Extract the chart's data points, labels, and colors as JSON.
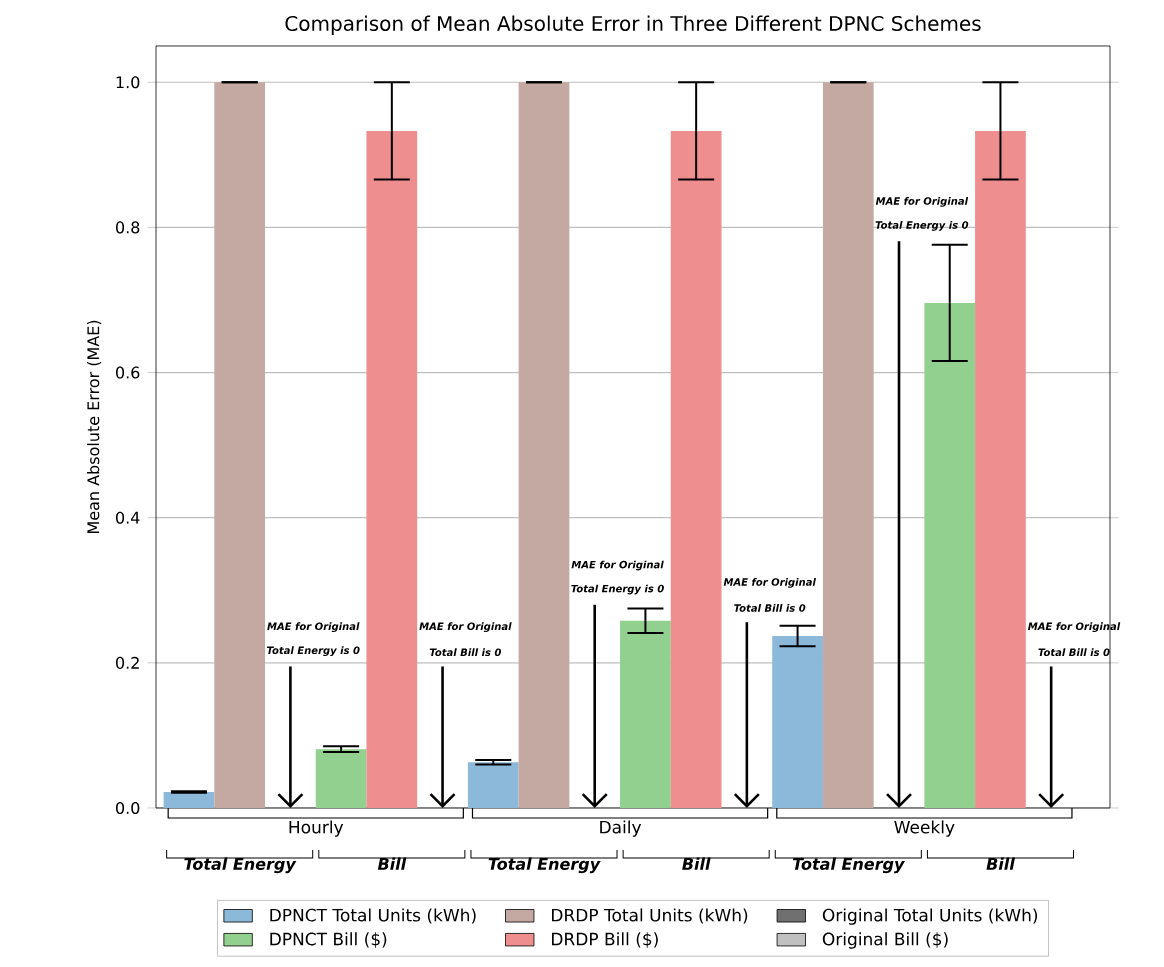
{
  "chart_data": {
    "type": "bar",
    "title": "Comparison of Mean Absolute Error in Three Different DPNC Schemes",
    "ylabel": "Mean Absolute Error (MAE)",
    "categories": [
      "Total Energy",
      "Bill",
      "Total Energy",
      "Bill",
      "Total Energy",
      "Bill"
    ],
    "series": [
      {
        "name": "DPNCT Total Units (kWh)",
        "color": "#8cb9da",
        "values": [
          0.022,
          null,
          0.063,
          null,
          0.237,
          null
        ],
        "errors": [
          0.001,
          null,
          0.003,
          null,
          0.014,
          null
        ]
      },
      {
        "name": "DRDP Total Units  (kWh)",
        "color": "#c4a8a2",
        "values": [
          1.0,
          null,
          1.0,
          null,
          1.0,
          null
        ],
        "errors": [
          0,
          null,
          0,
          null,
          0,
          null
        ]
      },
      {
        "name": "Original Total Units  (kWh)",
        "color": "#707070",
        "values": [
          0,
          null,
          0,
          null,
          0,
          null
        ]
      },
      {
        "name": "DPNCT Bill ($)",
        "color": "#92d08f",
        "values": [
          null,
          0.081,
          null,
          0.258,
          null,
          0.696
        ],
        "errors": [
          null,
          0.004,
          null,
          0.017,
          null,
          0.08
        ]
      },
      {
        "name": "DRDP Bill ($)",
        "color": "#ee8e8e",
        "values": [
          null,
          0.933,
          null,
          0.933,
          null,
          0.933
        ],
        "errors": [
          null,
          0.067,
          null,
          0.067,
          null,
          0.067
        ]
      },
      {
        "name": "Original Bill ($)",
        "color": "#c0c0c0",
        "values": [
          null,
          0,
          null,
          0,
          null,
          0
        ]
      }
    ],
    "ylim": [
      0,
      1.05
    ],
    "yticks": [
      {
        "value": 0,
        "label": "0.0"
      },
      {
        "value": 0.2,
        "label": "0.2"
      },
      {
        "value": 0.4,
        "label": "0.4"
      },
      {
        "value": 0.6,
        "label": "0.6"
      },
      {
        "value": 0.8,
        "label": "0.8"
      },
      {
        "value": 1.0,
        "label": "1.0"
      }
    ],
    "grid": "y",
    "legend": "bottom",
    "annotations": [
      "Hourly",
      "Daily",
      "Weekly",
      "MAE for Original",
      "Total Energy is 0",
      "MAE for Original",
      "Total Bill is 0",
      "MAE for Original",
      "Total Energy is 0",
      "MAE for Original",
      "Total Bill is 0",
      "MAE for Original",
      "Total Energy is 0",
      "MAE for Original",
      "Total Bill is 0"
    ]
  }
}
